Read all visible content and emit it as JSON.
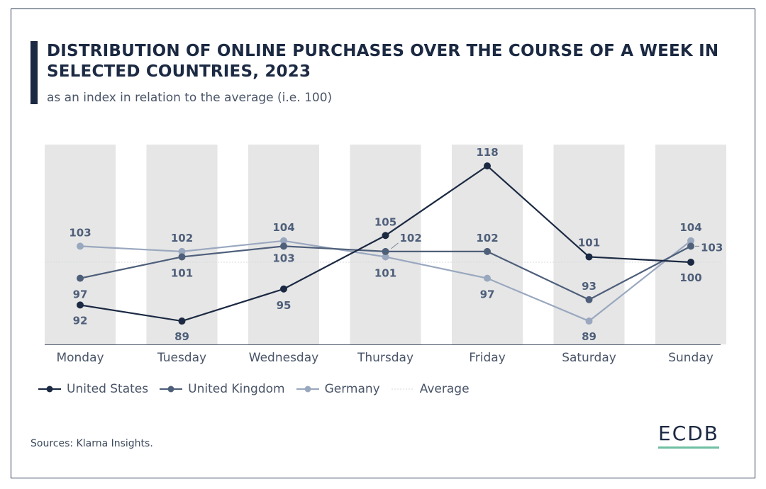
{
  "title": "DISTRIBUTION OF ONLINE PURCHASES OVER THE COURSE OF A WEEK IN SELECTED COUNTRIES, 2023",
  "subtitle": "as an index in relation to the average (i.e. 100)",
  "sources": "Sources: Klarna Insights.",
  "logo": "ECDB",
  "colors": {
    "title": "#1b2942",
    "column_band": "#e6e6e6",
    "accent": "#6fbfa3"
  },
  "chart_data": {
    "type": "line",
    "title": "DISTRIBUTION OF ONLINE PURCHASES OVER THE COURSE OF A WEEK IN SELECTED COUNTRIES, 2023",
    "xlabel": "",
    "ylabel": "",
    "grid": false,
    "categories": [
      "Monday",
      "Tuesday",
      "Wednesday",
      "Thursday",
      "Friday",
      "Saturday",
      "Sunday"
    ],
    "ylim": [
      86,
      121
    ],
    "series": [
      {
        "name": "United States",
        "color": "#1b2942",
        "values": [
          92,
          89,
          95,
          105,
          118,
          101,
          100
        ]
      },
      {
        "name": "United Kingdom",
        "color": "#4e5f7a",
        "values": [
          97,
          101,
          103,
          102,
          102,
          93,
          103
        ]
      },
      {
        "name": "Germany",
        "color": "#9aa8bf",
        "values": [
          103,
          102,
          104,
          101,
          97,
          89,
          104
        ]
      }
    ],
    "reference": {
      "name": "Average",
      "value": 100,
      "color": "#d4d8de"
    },
    "legend_position": "bottom-left"
  }
}
